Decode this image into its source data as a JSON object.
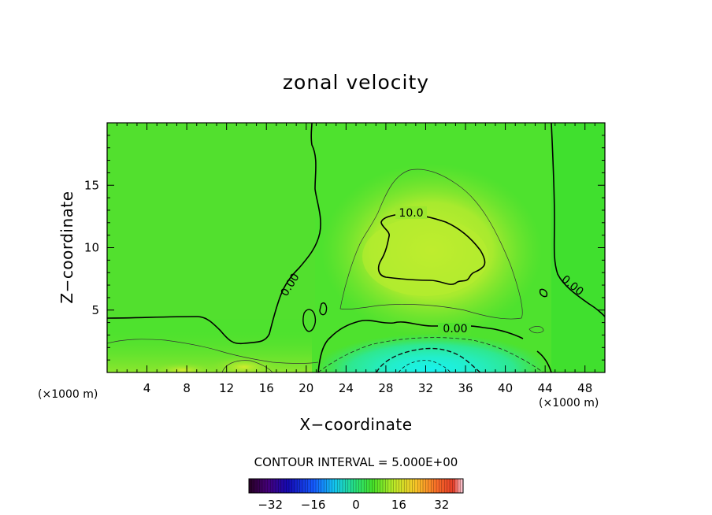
{
  "chart_data": {
    "type": "heatmap",
    "title": "zonal velocity",
    "xlabel": "X−coordinate",
    "ylabel": "Z−coordinate",
    "x_unit_left": "(×1000 m)",
    "x_unit_right": "(×1000 m)",
    "xlim": [
      0,
      50
    ],
    "ylim": [
      0,
      20
    ],
    "xticks": [
      4,
      8,
      12,
      16,
      20,
      24,
      28,
      32,
      36,
      40,
      44,
      48
    ],
    "xtick_labels": [
      "4",
      "8",
      "12",
      "16",
      "20",
      "24",
      "28",
      "32",
      "36",
      "40",
      "44",
      "48"
    ],
    "yticks": [
      5,
      10,
      15
    ],
    "ytick_labels": [
      "5",
      "10",
      "15"
    ],
    "contour_interval_text": "CONTOUR INTERVAL = 5.000E+00",
    "contour_labels": [
      {
        "text": "10.0",
        "x": 28.7,
        "z": 12.6
      },
      {
        "text": "0.00",
        "x": 18.3,
        "z": 6.8
      },
      {
        "text": "0.00",
        "x": 34.1,
        "z": 3.5
      },
      {
        "text": "0.00",
        "x": 46.4,
        "z": 6.7
      }
    ],
    "colorbar": {
      "range": [
        -40,
        40
      ],
      "ticks": [
        -32,
        -16,
        0,
        16,
        32
      ],
      "tick_labels": [
        "−32",
        "−16",
        "0",
        "16",
        "32"
      ]
    },
    "colors": {
      "background_field": "#48e22e",
      "positive_core": "#b9ec2c",
      "negative_core": "#20f0e6"
    }
  }
}
